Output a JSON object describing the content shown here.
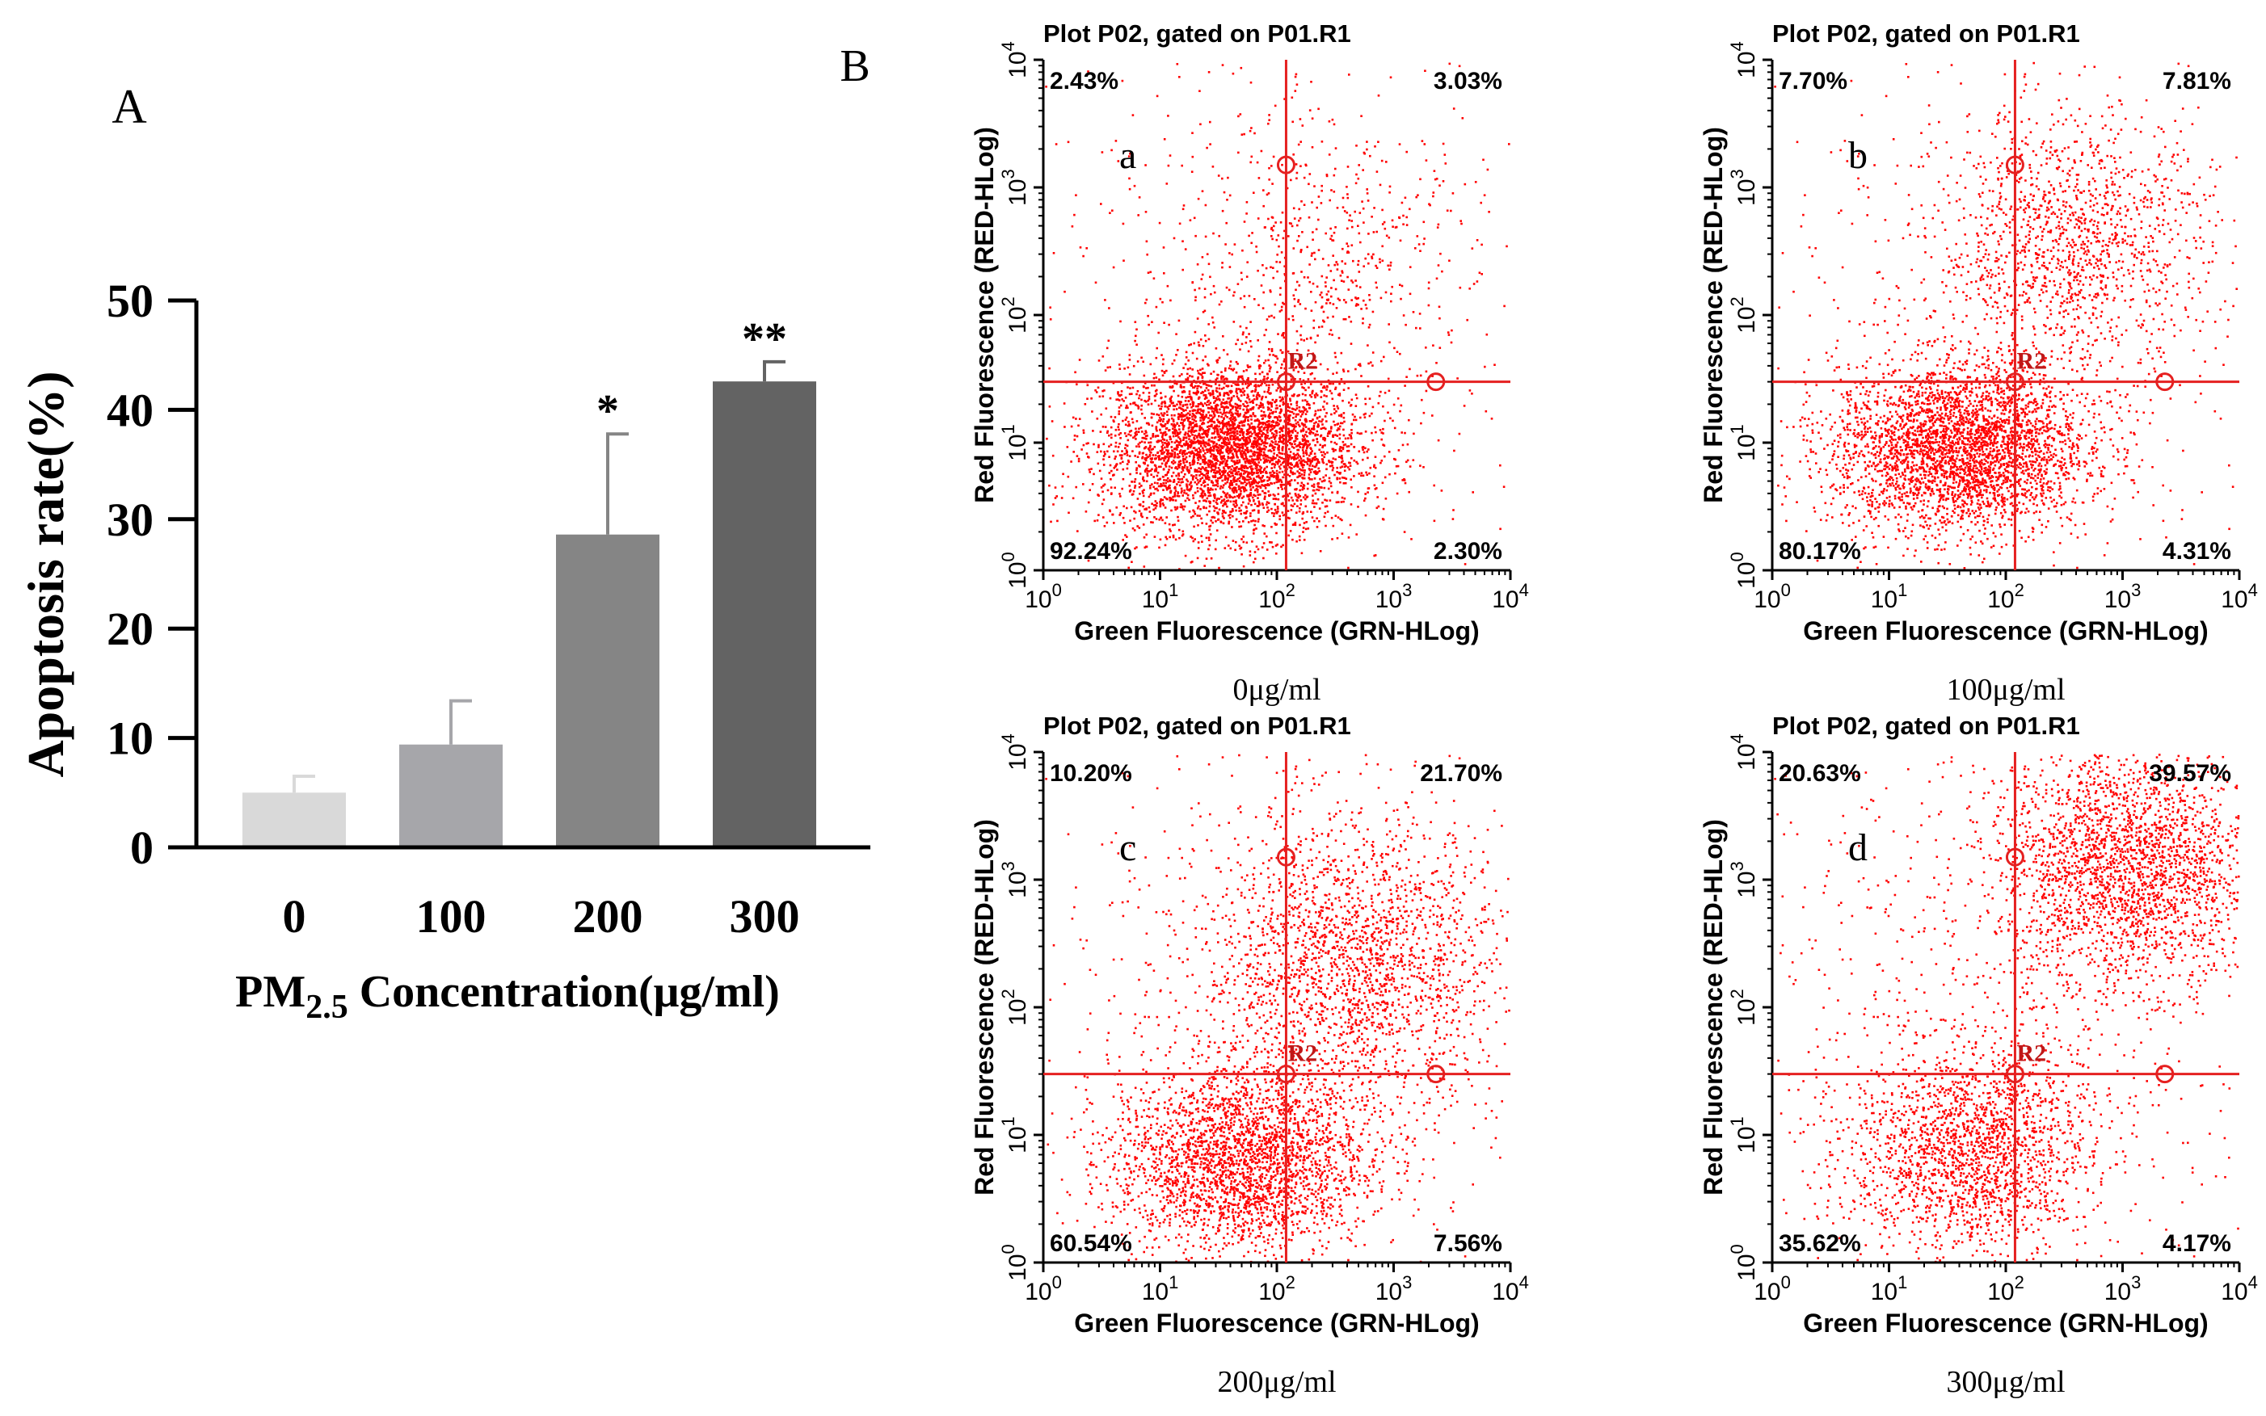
{
  "chart_data": [
    {
      "type": "bar",
      "panel_label": "A",
      "categories": [
        "0",
        "100",
        "200",
        "300"
      ],
      "values": [
        5.0,
        9.4,
        28.6,
        42.6
      ],
      "errors": [
        1.5,
        4.0,
        9.2,
        1.8
      ],
      "significance": [
        "",
        "",
        "*",
        "**"
      ],
      "bar_colors": [
        "#d9d9d9",
        "#a6a6aa",
        "#858585",
        "#636363"
      ],
      "ylabel": "Apoptosis rate(%)",
      "xlabel_main": "PM",
      "xlabel_sub": "2.5",
      "xlabel_rest": " Concentration(μg/ml)",
      "ylim": [
        0,
        50
      ],
      "yticks": [
        0,
        10,
        20,
        30,
        40,
        50
      ],
      "ytick_labels": [
        "0",
        "10",
        "20",
        "30",
        "40",
        "50"
      ]
    },
    {
      "type": "scatter",
      "panel_label": "B",
      "title": "Plot P02, gated on P01.R1",
      "xlabel": "Green Fluorescence (GRN-HLog)",
      "ylabel": "Red Fluorescence (RED-HLog)",
      "axis_scale": "log",
      "xlim": [
        1,
        10000
      ],
      "ylim": [
        1,
        10000
      ],
      "tick_exponents": [
        "0",
        "1",
        "2",
        "3",
        "4"
      ],
      "gate_x": 120,
      "gate_y": 30,
      "gate_label": "R2",
      "dot_color": "#ff0000",
      "gate_color": "#e52020",
      "subplots": [
        {
          "letter": "a",
          "caption": "0μg/ml",
          "quadrants": {
            "upper_left": "2.43%",
            "upper_right": "3.03%",
            "lower_left": "92.24%",
            "lower_right": "2.30%"
          }
        },
        {
          "letter": "b",
          "caption": "100μg/ml",
          "quadrants": {
            "upper_left": "7.70%",
            "upper_right": "7.81%",
            "lower_left": "80.17%",
            "lower_right": "4.31%"
          }
        },
        {
          "letter": "c",
          "caption": "200μg/ml",
          "quadrants": {
            "upper_left": "10.20%",
            "upper_right": "21.70%",
            "lower_left": "60.54%",
            "lower_right": "7.56%"
          }
        },
        {
          "letter": "d",
          "caption": "300μg/ml",
          "quadrants": {
            "upper_left": "20.63%",
            "upper_right": "39.57%",
            "lower_left": "35.62%",
            "lower_right": "4.17%"
          }
        }
      ]
    }
  ]
}
